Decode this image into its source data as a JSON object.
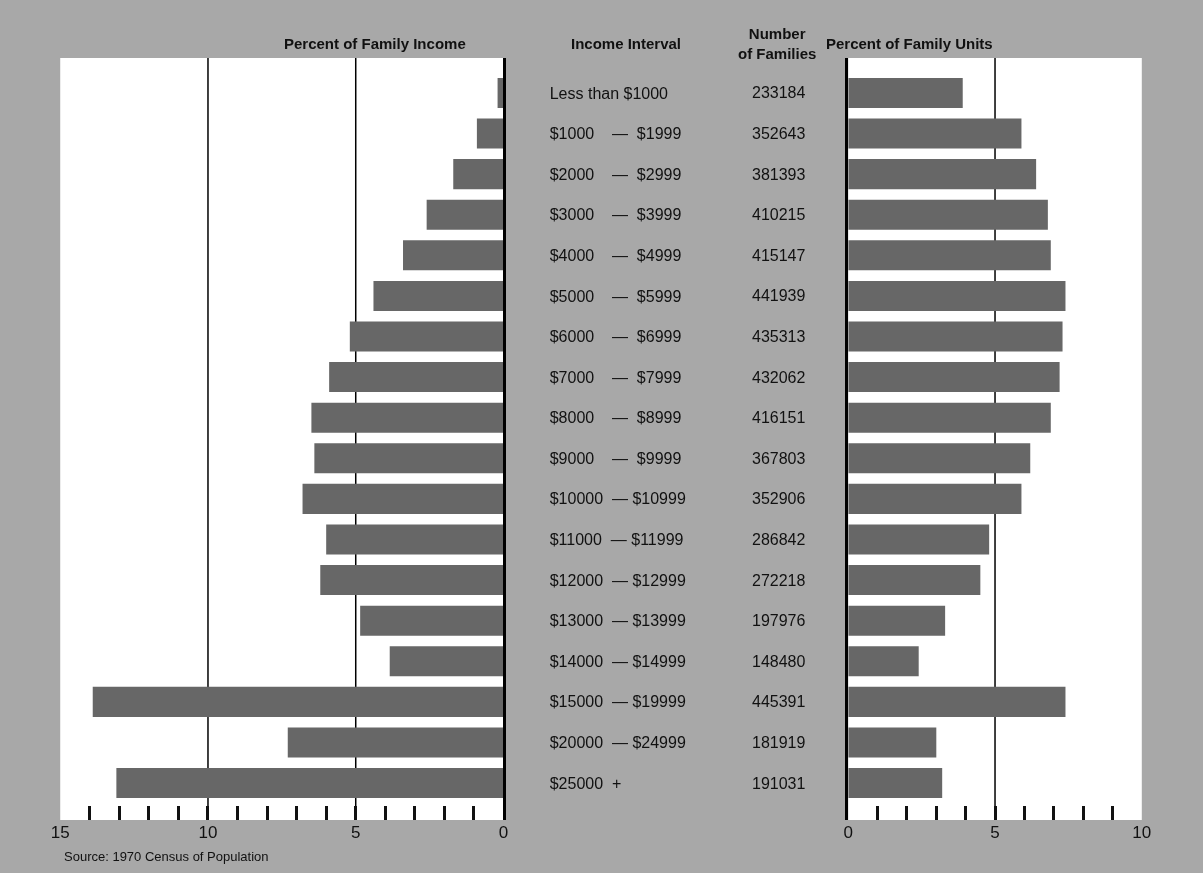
{
  "chart_data": [
    {
      "type": "bar",
      "orientation": "horizontal",
      "title": "Percent of Family Income",
      "ylabel": "Income Interval",
      "color": "#676767",
      "categories": [
        "Less than $1000",
        "$1000    —  $1999",
        "$2000    —  $2999",
        "$3000    —  $3999",
        "$4000    —  $4999",
        "$5000    —  $5999",
        "$6000    —  $6999",
        "$7000    —  $7999",
        "$8000    —  $8999",
        "$9000    —  $9999",
        "$10000  — $10999",
        "$11000  — $11999",
        "$12000  — $12999",
        "$13000  — $13999",
        "$14000  — $14999",
        "$15000  — $19999",
        "$20000  — $24999",
        "$25000  +"
      ],
      "values": [
        0.2,
        0.9,
        1.7,
        2.6,
        3.4,
        4.4,
        5.2,
        5.9,
        6.5,
        6.4,
        6.8,
        6.0,
        6.2,
        4.85,
        3.85,
        13.9,
        7.3,
        13.1
      ],
      "xlim": [
        15,
        0
      ],
      "xticks": [
        {
          "value": 15,
          "label": "15"
        },
        {
          "value": 14,
          "label": null
        },
        {
          "value": 13,
          "label": null
        },
        {
          "value": 12,
          "label": null
        },
        {
          "value": 11,
          "label": null
        },
        {
          "value": 10,
          "label": "10"
        },
        {
          "value": 9,
          "label": null
        },
        {
          "value": 8,
          "label": null
        },
        {
          "value": 7,
          "label": null
        },
        {
          "value": 6,
          "label": null
        },
        {
          "value": 5,
          "label": "5"
        },
        {
          "value": 4,
          "label": null
        },
        {
          "value": 3,
          "label": null
        },
        {
          "value": 2,
          "label": null
        },
        {
          "value": 1,
          "label": null
        },
        {
          "value": 0,
          "label": "0"
        }
      ],
      "ref_lines": [
        {
          "axis": "x",
          "value": 10,
          "color": "#000000"
        },
        {
          "axis": "x",
          "value": 5,
          "color": "#000000"
        }
      ],
      "annotations": [
        "Source: 1970 Census of Population"
      ]
    },
    {
      "type": "other",
      "title": "Number\nof Families",
      "annotations": [
        "233184",
        "352643",
        "381393",
        "410215",
        "415147",
        "441939",
        "435313",
        "432062",
        "416151",
        "367803",
        "352906",
        "286842",
        "272218",
        "197976",
        "148480",
        "445391",
        "181919",
        "191031"
      ]
    },
    {
      "type": "bar",
      "orientation": "horizontal",
      "title": "Percent of Family Units",
      "color": "#676767",
      "tick_labels": "x",
      "categories": [
        null,
        null,
        null,
        null,
        null,
        null,
        null,
        null,
        null,
        null,
        null,
        null,
        null,
        null,
        null,
        null,
        null,
        null
      ],
      "values": [
        3.9,
        5.9,
        6.4,
        6.8,
        6.9,
        7.4,
        7.3,
        7.2,
        6.9,
        6.2,
        5.9,
        4.8,
        4.5,
        3.3,
        2.4,
        7.4,
        3.0,
        3.2
      ],
      "xlim": [
        0,
        10
      ],
      "xticks": [
        {
          "value": 0,
          "label": "0"
        },
        {
          "value": 1,
          "label": null
        },
        {
          "value": 2,
          "label": null
        },
        {
          "value": 3,
          "label": null
        },
        {
          "value": 4,
          "label": null
        },
        {
          "value": 5,
          "label": "5"
        },
        {
          "value": 6,
          "label": null
        },
        {
          "value": 7,
          "label": null
        },
        {
          "value": 8,
          "label": null
        },
        {
          "value": 9,
          "label": null
        },
        {
          "value": 10,
          "label": "10"
        }
      ],
      "ref_lines": [
        {
          "axis": "x",
          "value": 5,
          "color": "#000000"
        }
      ]
    }
  ]
}
